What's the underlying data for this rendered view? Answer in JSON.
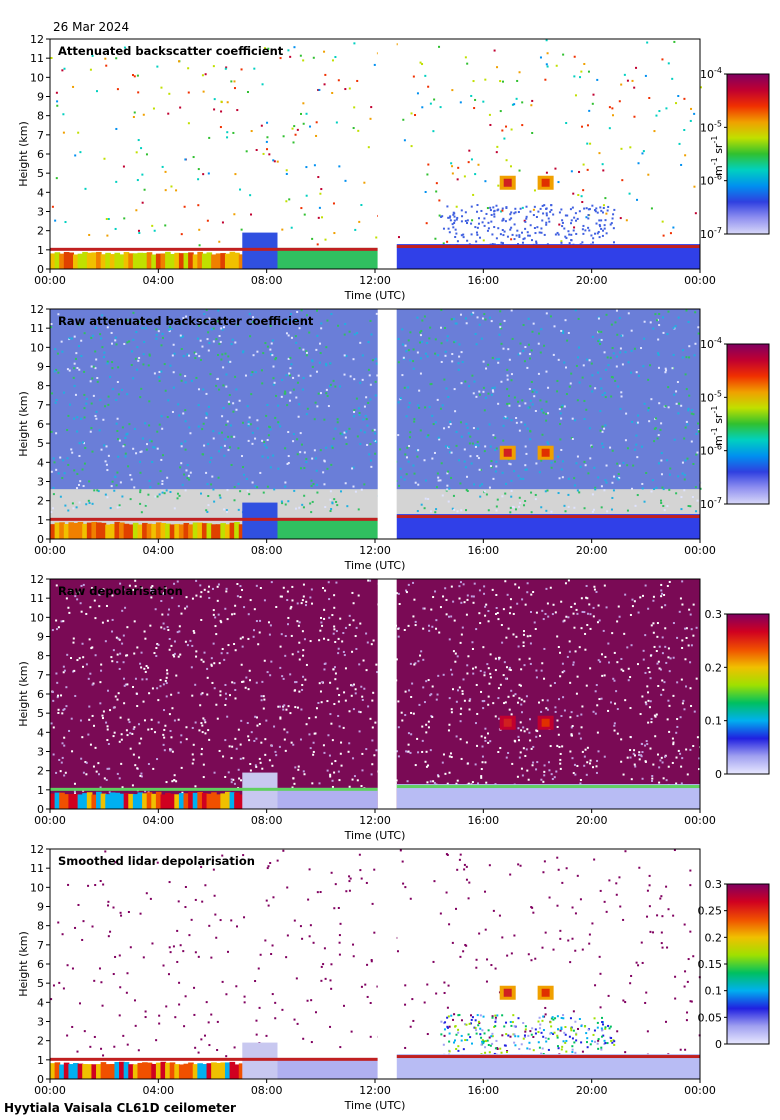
{
  "date": "26 Mar 2024",
  "footer": "Hyytiala Vaisala CL61D ceilometer",
  "chart_data": [
    {
      "type": "heatmap",
      "title": "Attenuated backscatter coefficient",
      "xlabel": "Time (UTC)",
      "ylabel": "Height (km)",
      "xticks": [
        "00:00",
        "04:00",
        "08:00",
        "12:00",
        "16:00",
        "20:00",
        "00:00"
      ],
      "yticks": [
        "0",
        "1",
        "2",
        "3",
        "4",
        "5",
        "6",
        "7",
        "8",
        "9",
        "10",
        "11",
        "12"
      ],
      "ylim": [
        0,
        12
      ],
      "xlim_hours": [
        0,
        24
      ],
      "data_gap_hours": [
        12.1,
        12.8
      ],
      "colorbar": {
        "scale": "log",
        "min": 1e-07,
        "max": 0.0001,
        "tick_base": "10",
        "tick_exponents": [
          "-7",
          "-6",
          "-5",
          "-4"
        ],
        "unit_main": "m",
        "unit_exp1": "-1",
        "unit_mid": " sr",
        "unit_exp2": "-1"
      },
      "features": {
        "boundary_layer_top_km": 1.0,
        "clouds": [
          {
            "time_h": 16.9,
            "height_km": 4.5
          },
          {
            "time_h": 18.3,
            "height_km": 4.5
          }
        ]
      }
    },
    {
      "type": "heatmap",
      "title": "Raw attenuated backscatter coefficient",
      "xlabel": "Time (UTC)",
      "ylabel": "Height (km)",
      "xticks": [
        "00:00",
        "04:00",
        "08:00",
        "12:00",
        "16:00",
        "20:00",
        "00:00"
      ],
      "yticks": [
        "0",
        "1",
        "2",
        "3",
        "4",
        "5",
        "6",
        "7",
        "8",
        "9",
        "10",
        "11",
        "12"
      ],
      "ylim": [
        0,
        12
      ],
      "xlim_hours": [
        0,
        24
      ],
      "data_gap_hours": [
        12.1,
        12.8
      ],
      "colorbar": {
        "scale": "log",
        "min": 1e-07,
        "max": 0.0001,
        "tick_base": "10",
        "tick_exponents": [
          "-7",
          "-6",
          "-5",
          "-4"
        ],
        "unit_main": "m",
        "unit_exp1": "-1",
        "unit_mid": " sr",
        "unit_exp2": "-1"
      }
    },
    {
      "type": "heatmap",
      "title": "Raw depolarisation",
      "xlabel": "Time (UTC)",
      "ylabel": "Height (km)",
      "xticks": [
        "00:00",
        "04:00",
        "08:00",
        "12:00",
        "16:00",
        "20:00",
        "00:00"
      ],
      "yticks": [
        "0",
        "1",
        "2",
        "3",
        "4",
        "5",
        "6",
        "7",
        "8",
        "9",
        "10",
        "11",
        "12"
      ],
      "ylim": [
        0,
        12
      ],
      "xlim_hours": [
        0,
        24
      ],
      "data_gap_hours": [
        12.1,
        12.8
      ],
      "colorbar": {
        "scale": "linear",
        "min": 0,
        "max": 0.3,
        "ticks": [
          "0",
          "0.1",
          "0.2",
          "0.3"
        ]
      }
    },
    {
      "type": "heatmap",
      "title": "Smoothed lidar depolarisation",
      "xlabel": "Time (UTC)",
      "ylabel": "Height (km)",
      "xticks": [
        "00:00",
        "04:00",
        "08:00",
        "12:00",
        "16:00",
        "20:00",
        "00:00"
      ],
      "yticks": [
        "0",
        "1",
        "2",
        "3",
        "4",
        "5",
        "6",
        "7",
        "8",
        "9",
        "10",
        "11",
        "12"
      ],
      "ylim": [
        0,
        12
      ],
      "xlim_hours": [
        0,
        24
      ],
      "data_gap_hours": [
        12.1,
        12.8
      ],
      "colorbar": {
        "scale": "linear",
        "min": 0,
        "max": 0.3,
        "ticks": [
          "0",
          "0.05",
          "0.1",
          "0.15",
          "0.2",
          "0.25",
          "0.3"
        ]
      }
    }
  ]
}
